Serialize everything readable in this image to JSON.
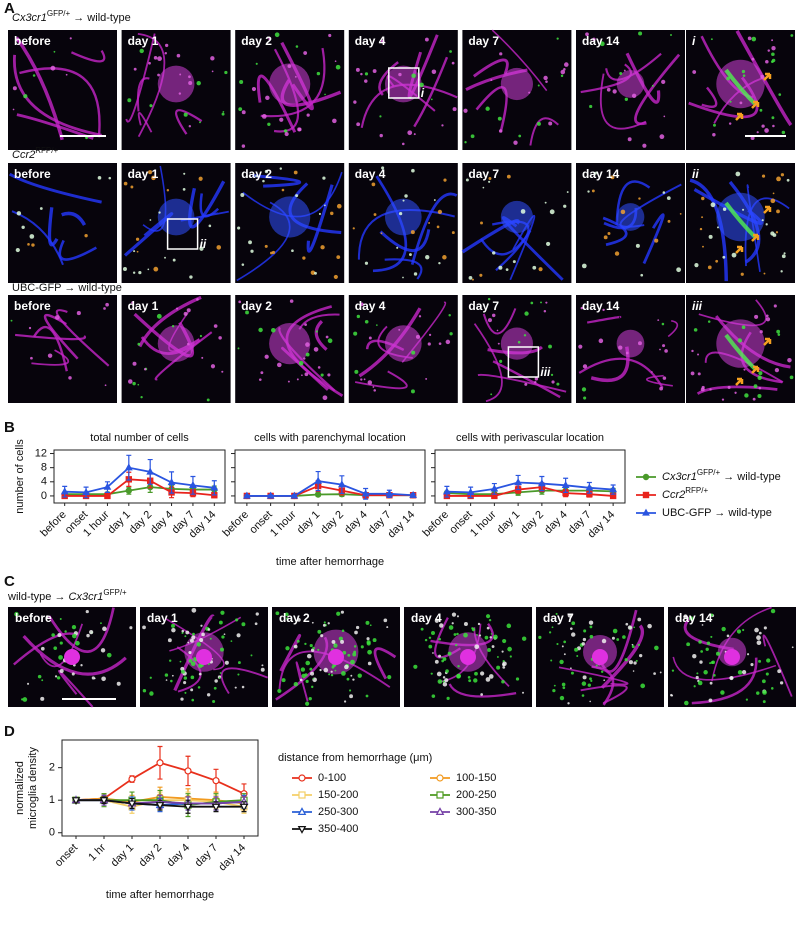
{
  "panel_labels": [
    "A",
    "B",
    "C",
    "D"
  ],
  "panel_a": {
    "rows": [
      {
        "label": [
          {
            "text": "Cx3cr1",
            "italic": true
          },
          {
            "text": "GFP/+",
            "sup": true
          },
          {
            "text": " → wild-type"
          }
        ],
        "tiles": [
          "before",
          "day 1",
          "day 2",
          "day 4",
          "day 7",
          "day 14"
        ],
        "inset": "i"
      },
      {
        "label": [
          {
            "text": "Ccr2",
            "italic": true
          },
          {
            "text": "RFP/+",
            "sup": true
          }
        ],
        "tiles": [
          "before",
          "day 1",
          "day 2",
          "day 4",
          "day 7",
          "day 14"
        ],
        "inset": "ii"
      },
      {
        "label": [
          {
            "text": "UBC-GFP → wild-type"
          }
        ],
        "tiles": [
          "before",
          "day 1",
          "day 2",
          "day 4",
          "day 7",
          "day 14"
        ],
        "inset": "iii"
      }
    ]
  },
  "panel_c": {
    "label": [
      {
        "text": "wild-type → "
      },
      {
        "text": "Cx3cr1",
        "italic": true
      },
      {
        "text": "GFP/+",
        "sup": true
      }
    ],
    "tiles": [
      "before",
      "day 1",
      "day 2",
      "day 4",
      "day 7",
      "day 14"
    ]
  },
  "chart_data": [
    {
      "type": "line",
      "title": "total number of cells",
      "ylabel": "number of cells",
      "categories": [
        "before",
        "onset",
        "1 hour",
        "day 1",
        "day 2",
        "day 4",
        "day 7",
        "day 14"
      ],
      "ylim": [
        -2,
        13
      ],
      "yticks": [
        0,
        4,
        8,
        12
      ],
      "series": [
        {
          "color": "#4a9a2a",
          "marker": "circle",
          "values": [
            0.5,
            0.5,
            0.5,
            1.5,
            2.5,
            2,
            1.8,
            1.8
          ],
          "errors": [
            0.5,
            0.5,
            0.5,
            1,
            1.5,
            1,
            1,
            1
          ]
        },
        {
          "color": "#e8231c",
          "marker": "square",
          "values": [
            0,
            0,
            0,
            4.7,
            4.3,
            1,
            0.8,
            0.2
          ],
          "errors": [
            0.3,
            0.3,
            0.3,
            2,
            2,
            1.5,
            1,
            0.5
          ]
        },
        {
          "color": "#2a55e0",
          "marker": "triangle",
          "values": [
            1.2,
            1,
            2.5,
            8,
            6.8,
            3.8,
            3,
            2.3
          ],
          "errors": [
            1.5,
            1.5,
            1.5,
            3.5,
            3.5,
            3,
            2.5,
            2
          ]
        }
      ]
    },
    {
      "type": "line",
      "title": "cells with parenchymal location",
      "xlabel": "time after hemorrhage",
      "categories": [
        "before",
        "onset",
        "1 hour",
        "day 1",
        "day 2",
        "day 4",
        "day 7",
        "day 14"
      ],
      "ylim": [
        -2,
        13
      ],
      "yticks": [
        0,
        4,
        8,
        12
      ],
      "series": [
        {
          "color": "#4a9a2a",
          "marker": "circle",
          "values": [
            0,
            0,
            0,
            0.4,
            0.5,
            0.2,
            0.2,
            0.2
          ],
          "errors": [
            0.2,
            0.2,
            0.2,
            0.5,
            0.6,
            0.3,
            0.3,
            0.3
          ]
        },
        {
          "color": "#e8231c",
          "marker": "square",
          "values": [
            0,
            0,
            0,
            2.8,
            1.5,
            0.2,
            0.2,
            0.2
          ],
          "errors": [
            0.2,
            0.2,
            0.2,
            1.5,
            1.2,
            0.4,
            0.4,
            0.3
          ]
        },
        {
          "color": "#2a55e0",
          "marker": "triangle",
          "values": [
            0,
            0,
            0,
            4.2,
            3.2,
            0.6,
            0.6,
            0.2
          ],
          "errors": [
            0.3,
            0.3,
            0.3,
            2.7,
            2.5,
            1.5,
            1,
            0.5
          ]
        }
      ]
    },
    {
      "type": "line",
      "title": "cells with perivascular location",
      "legend": "right",
      "categories": [
        "before",
        "onset",
        "1 hour",
        "day 1",
        "day 2",
        "day 4",
        "day 7",
        "day 14"
      ],
      "ylim": [
        -2,
        13
      ],
      "yticks": [
        0,
        4,
        8,
        12
      ],
      "series": [
        {
          "name": [
            {
              "text": "Cx3cr1",
              "italic": true
            },
            {
              "text": "GFP/+",
              "sup": true
            },
            {
              "text": " → wild-type"
            }
          ],
          "color": "#4a9a2a",
          "marker": "circle",
          "values": [
            0.8,
            0.5,
            0.5,
            1,
            1.5,
            1.5,
            1.5,
            1.3
          ],
          "errors": [
            0.5,
            0.5,
            0.5,
            0.8,
            1,
            1,
            1,
            0.8
          ]
        },
        {
          "name": [
            {
              "text": "Ccr2",
              "italic": true
            },
            {
              "text": "RFP/+",
              "sup": true
            }
          ],
          "color": "#e8231c",
          "marker": "square",
          "values": [
            0,
            0,
            0,
            1.8,
            2.5,
            0.8,
            0.5,
            0
          ],
          "errors": [
            0.3,
            0.3,
            0.3,
            1,
            1.2,
            1,
            0.8,
            0.4
          ]
        },
        {
          "name": [
            {
              "text": "UBC-GFP → wild-type"
            }
          ],
          "color": "#2a55e0",
          "marker": "triangle",
          "values": [
            1.2,
            1,
            2,
            3.8,
            3.5,
            3,
            2.3,
            1.8
          ],
          "errors": [
            1.5,
            1.5,
            1.5,
            2,
            2,
            2,
            1.5,
            1.3
          ]
        }
      ]
    },
    {
      "type": "line",
      "ylabel": [
        "normalized",
        "microglia density"
      ],
      "xlabel": "time after hemorrhage",
      "legend": "right",
      "legend_title": "distance from hemorrhage (μm)",
      "hollow_markers": true,
      "categories": [
        "onset",
        "1 hr",
        "day 1",
        "day 2",
        "day 4",
        "day 7",
        "day 14"
      ],
      "ylim": [
        -0.1,
        2.85
      ],
      "yticks": [
        0,
        1,
        2
      ],
      "series": [
        {
          "name": "0-100",
          "color": "#e8301c",
          "marker": "circle",
          "values": [
            1,
            1.05,
            1.65,
            2.15,
            1.9,
            1.6,
            1.2
          ],
          "errors": [
            0.05,
            0.1,
            0.1,
            0.5,
            0.45,
            0.35,
            0.3
          ]
        },
        {
          "name": "100-150",
          "color": "#f29a1f",
          "marker": "circle",
          "values": [
            1,
            1.05,
            0.95,
            1.1,
            1.05,
            1,
            0.9
          ],
          "errors": [
            0.05,
            0.15,
            0.2,
            0.3,
            0.3,
            0.25,
            0.2
          ]
        },
        {
          "name": "150-200",
          "color": "#f4cf67",
          "marker": "square",
          "values": [
            1,
            1,
            0.8,
            1,
            1,
            0.95,
            0.8
          ],
          "errors": [
            0.05,
            0.15,
            0.2,
            0.25,
            0.25,
            0.2,
            0.2
          ]
        },
        {
          "name": "200-250",
          "color": "#4c9a1f",
          "marker": "square",
          "values": [
            1,
            1,
            1,
            1,
            0.85,
            0.95,
            1
          ],
          "errors": [
            0.05,
            0.2,
            0.25,
            0.3,
            0.35,
            0.25,
            0.2
          ]
        },
        {
          "name": "250-300",
          "color": "#2a5fd6",
          "marker": "triangle",
          "values": [
            1,
            1,
            0.9,
            0.85,
            0.9,
            0.9,
            0.95
          ],
          "errors": [
            0.05,
            0.15,
            0.2,
            0.2,
            0.2,
            0.2,
            0.2
          ]
        },
        {
          "name": "300-350",
          "color": "#7540a6",
          "marker": "triangle",
          "values": [
            1,
            1,
            0.9,
            0.95,
            0.9,
            0.9,
            0.95
          ],
          "errors": [
            0.05,
            0.15,
            0.15,
            0.2,
            0.2,
            0.2,
            0.15
          ]
        },
        {
          "name": "350-400",
          "color": "#111111",
          "marker": "triangle-down",
          "values": [
            1,
            1,
            0.9,
            0.85,
            0.8,
            0.8,
            0.8
          ],
          "errors": [
            0.05,
            0.1,
            0.15,
            0.15,
            0.2,
            0.15,
            0.15
          ]
        }
      ]
    }
  ]
}
